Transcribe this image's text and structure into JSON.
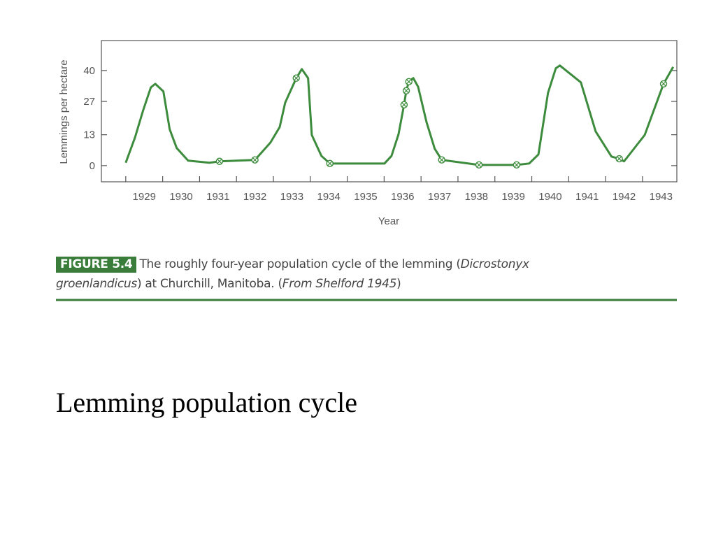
{
  "chart_data": {
    "type": "line",
    "xlabel": "Year",
    "ylabel": "Lemmings per hectare",
    "xlim": [
      1928.34,
      1943.93
    ],
    "ylim": [
      -6.8,
      52.6
    ],
    "xticks": [
      1929,
      1930,
      1931,
      1932,
      1933,
      1934,
      1935,
      1936,
      1937,
      1938,
      1939,
      1940,
      1941,
      1942,
      1943
    ],
    "yticks": [
      0,
      13,
      27,
      40
    ],
    "grid": false,
    "series": [
      {
        "color": "#3d8b3d",
        "x": [
          1929.0,
          1929.25,
          1929.47,
          1929.68,
          1929.8,
          1930.02,
          1930.19,
          1930.38,
          1930.69,
          1931.27,
          1931.54,
          1932.5,
          1932.92,
          1933.17,
          1933.32,
          1933.62,
          1933.77,
          1933.94,
          1934.04,
          1934.3,
          1934.53,
          1936.01,
          1936.2,
          1936.39,
          1936.54,
          1936.6,
          1936.67,
          1936.79,
          1936.92,
          1937.15,
          1937.37,
          1937.56,
          1938.57,
          1939.59,
          1939.93,
          1940.18,
          1940.44,
          1940.65,
          1940.76,
          1941.33,
          1941.73,
          1942.16,
          1942.37,
          1942.5,
          1943.06,
          1943.57,
          1943.83
        ],
        "values": [
          1.2,
          11.8,
          23.2,
          32.9,
          34.4,
          31.2,
          15.3,
          7.4,
          2.1,
          1.2,
          1.8,
          2.4,
          9.7,
          16.2,
          26.5,
          36.8,
          40.6,
          36.8,
          12.9,
          4.1,
          0.9,
          0.9,
          4.1,
          13.2,
          25.6,
          31.5,
          35.3,
          36.8,
          33.2,
          18.2,
          7.1,
          2.4,
          0.3,
          0.3,
          0.9,
          4.7,
          30.6,
          40.9,
          42.1,
          35,
          14.4,
          3.8,
          2.9,
          1.8,
          12.9,
          34.4,
          41.5
        ]
      },
      {
        "color": "#3d8b3d",
        "marker": "circled-x",
        "line": false,
        "x": [
          1931.54,
          1932.5,
          1933.62,
          1934.53,
          1936.54,
          1936.6,
          1936.67,
          1937.56,
          1938.57,
          1939.59,
          1942.37,
          1943.57
        ],
        "values": [
          1.8,
          2.4,
          36.8,
          0.9,
          25.6,
          31.5,
          35.3,
          2.4,
          0.3,
          0.3,
          2.9,
          34.4
        ]
      }
    ]
  },
  "caption": {
    "label": "FIGURE 5.4",
    "parts": [
      "The roughly four-year population cycle of the lemming (",
      "Dicrostonyx",
      "groenlandicus",
      ") at Churchill, Manitoba. (",
      "From Shelford 1945",
      ")"
    ]
  },
  "slide_title": "Lemming population cycle"
}
